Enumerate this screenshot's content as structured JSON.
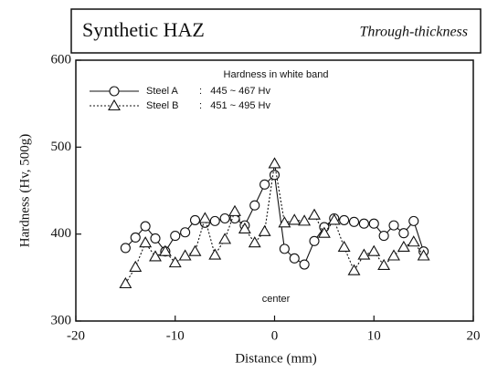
{
  "chart_data": {
    "type": "line",
    "title": "Synthetic HAZ",
    "subtitle": "Through-thickness",
    "xlabel": "Distance (mm)",
    "ylabel": "Hardness (Hv, 500g)",
    "legend_title": "Hardness in white band",
    "annotation": "center",
    "x": [
      -15,
      -14,
      -13,
      -12,
      -11,
      -10,
      -9,
      -8,
      -7,
      -6,
      -5,
      -4,
      -3,
      -2,
      -1,
      0,
      1,
      2,
      3,
      4,
      5,
      6,
      7,
      8,
      9,
      10,
      11,
      12,
      13,
      14,
      15
    ],
    "series": [
      {
        "name": "Steel A",
        "legend_detail": ":   445 ~ 467 Hv",
        "color": "#111111",
        "line_style": "solid",
        "marker": "circle",
        "values": [
          384,
          396,
          409,
          395,
          380,
          398,
          402,
          416,
          413,
          415,
          418,
          418,
          410,
          433,
          457,
          468,
          383,
          372,
          365,
          392,
          408,
          418,
          416,
          414,
          412,
          412,
          398,
          410,
          401,
          415,
          380
        ]
      },
      {
        "name": "Steel B",
        "legend_detail": ":   451 ~ 495 Hv",
        "color": "#111111",
        "line_style": "dotted",
        "marker": "triangle",
        "values": [
          343,
          362,
          390,
          374,
          380,
          367,
          375,
          380,
          418,
          376,
          394,
          426,
          406,
          390,
          403,
          481,
          413,
          416,
          415,
          422,
          401,
          416,
          385,
          358,
          376,
          380,
          364,
          375,
          385,
          391,
          375
        ]
      }
    ],
    "xlim": [
      -20,
      20
    ],
    "xticks": [
      -20,
      -10,
      0,
      10,
      20
    ],
    "ylim": [
      300,
      600
    ],
    "yticks": [
      300,
      400,
      500,
      600
    ]
  }
}
